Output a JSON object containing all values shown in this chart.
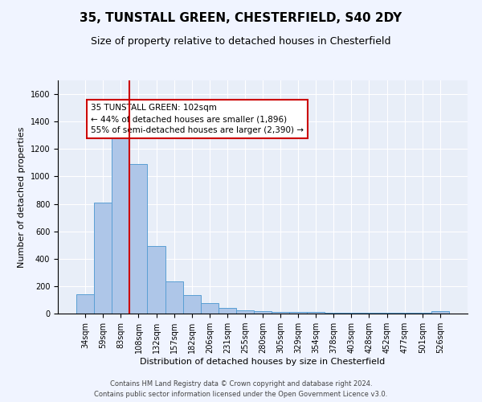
{
  "title1": "35, TUNSTALL GREEN, CHESTERFIELD, S40 2DY",
  "title2": "Size of property relative to detached houses in Chesterfield",
  "xlabel": "Distribution of detached houses by size in Chesterfield",
  "ylabel": "Number of detached properties",
  "footer": "Contains HM Land Registry data © Crown copyright and database right 2024.\nContains public sector information licensed under the Open Government Licence v3.0.",
  "bar_labels": [
    "34sqm",
    "59sqm",
    "83sqm",
    "108sqm",
    "132sqm",
    "157sqm",
    "182sqm",
    "206sqm",
    "231sqm",
    "255sqm",
    "280sqm",
    "305sqm",
    "329sqm",
    "354sqm",
    "378sqm",
    "403sqm",
    "428sqm",
    "452sqm",
    "477sqm",
    "501sqm",
    "526sqm"
  ],
  "bar_values": [
    140,
    810,
    1300,
    1090,
    490,
    235,
    135,
    75,
    40,
    25,
    15,
    10,
    10,
    10,
    5,
    5,
    5,
    5,
    5,
    5,
    15
  ],
  "bar_color": "#aec6e8",
  "bar_edge_color": "#5a9fd4",
  "vline_color": "#cc0000",
  "annotation_text": "35 TUNSTALL GREEN: 102sqm\n← 44% of detached houses are smaller (1,896)\n55% of semi-detached houses are larger (2,390) →",
  "box_color": "#cc0000",
  "ylim": [
    0,
    1700
  ],
  "yticks": [
    0,
    200,
    400,
    600,
    800,
    1000,
    1200,
    1400,
    1600
  ],
  "background_color": "#e8eef8",
  "fig_background_color": "#f0f4ff",
  "grid_color": "#ffffff",
  "title_fontsize": 11,
  "subtitle_fontsize": 9,
  "tick_fontsize": 7,
  "ylabel_fontsize": 8,
  "xlabel_fontsize": 8,
  "footer_fontsize": 6,
  "ann_fontsize": 7.5
}
